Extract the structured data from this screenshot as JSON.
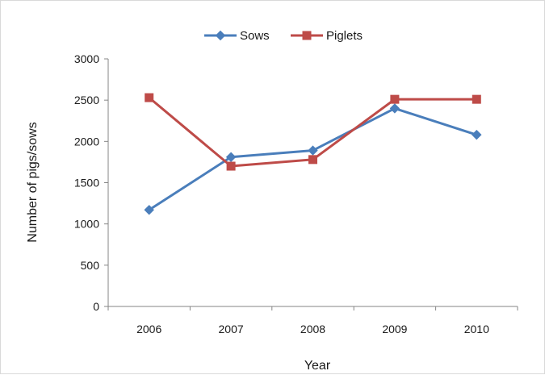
{
  "chart_data": {
    "type": "line",
    "title": "",
    "xlabel": "Year",
    "ylabel": "Number of pigs/sows",
    "categories": [
      "2006",
      "2007",
      "2008",
      "2009",
      "2010"
    ],
    "ylim": [
      0,
      3000
    ],
    "yticks": [
      0,
      500,
      1000,
      1500,
      2000,
      2500,
      3000
    ],
    "grid": false,
    "legend_position": "top-center",
    "series": [
      {
        "name": "Sows",
        "color": "#4a7ebb",
        "marker": "diamond",
        "values": [
          1170,
          1810,
          1890,
          2400,
          2080
        ]
      },
      {
        "name": "Piglets",
        "color": "#be4b48",
        "marker": "square",
        "values": [
          2530,
          1700,
          1780,
          2510,
          2510
        ]
      }
    ]
  }
}
